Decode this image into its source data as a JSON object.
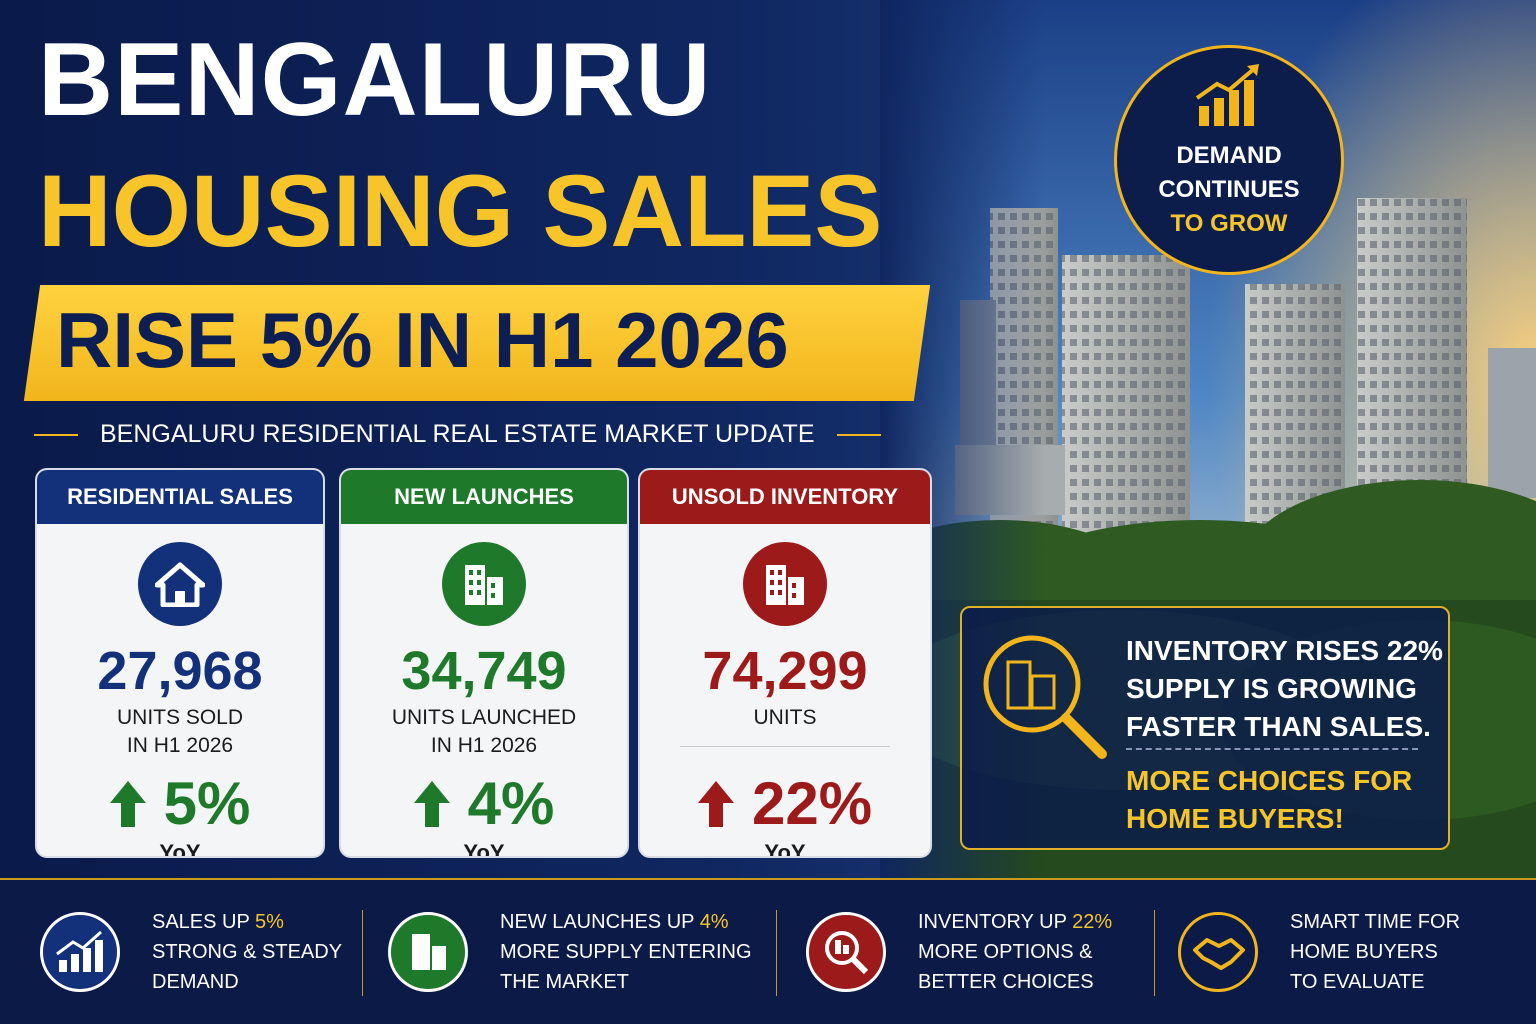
{
  "header": {
    "title_line1": "BENGALURU",
    "title_line2": "HOUSING SALES",
    "banner": "RISE 5% IN H1 2026",
    "subtitle": "BENGALURU RESIDENTIAL REAL ESTATE MARKET UPDATE"
  },
  "badge": {
    "lines": [
      "DEMAND",
      "CONTINUES"
    ],
    "highlight": "TO GROW"
  },
  "cards": [
    {
      "title": "RESIDENTIAL SALES",
      "value": "27,968",
      "unit_lines": [
        "UNITS SOLD",
        "IN H1 2026"
      ],
      "change": "5%",
      "period": "YoY"
    },
    {
      "title": "NEW LAUNCHES",
      "value": "34,749",
      "unit_lines": [
        "UNITS LAUNCHED",
        "IN H1 2026"
      ],
      "change": "4%",
      "period": "YoY"
    },
    {
      "title": "UNSOLD INVENTORY",
      "value": "74,299",
      "unit_lines": [
        "UNITS"
      ],
      "change": "22%",
      "period": "YoY"
    }
  ],
  "callout": {
    "lines": [
      "INVENTORY RISES 22%",
      "SUPPLY IS GROWING",
      "FASTER THAN SALES."
    ],
    "highlight_lines": [
      "MORE CHOICES FOR",
      "HOME BUYERS!"
    ]
  },
  "footer": [
    {
      "lead": "SALES UP",
      "highlight": "5%",
      "lines": [
        "STRONG & STEADY",
        "DEMAND"
      ]
    },
    {
      "lead": "NEW LAUNCHES UP",
      "highlight": "4%",
      "lines": [
        "MORE SUPPLY ENTERING",
        "THE MARKET"
      ]
    },
    {
      "lead": "INVENTORY UP",
      "highlight": "22%",
      "lines": [
        "MORE OPTIONS &",
        "BETTER CHOICES"
      ]
    },
    {
      "lead": "SMART TIME FOR",
      "highlight": null,
      "lines": [
        "HOME BUYERS",
        "TO EVALUATE"
      ]
    }
  ]
}
